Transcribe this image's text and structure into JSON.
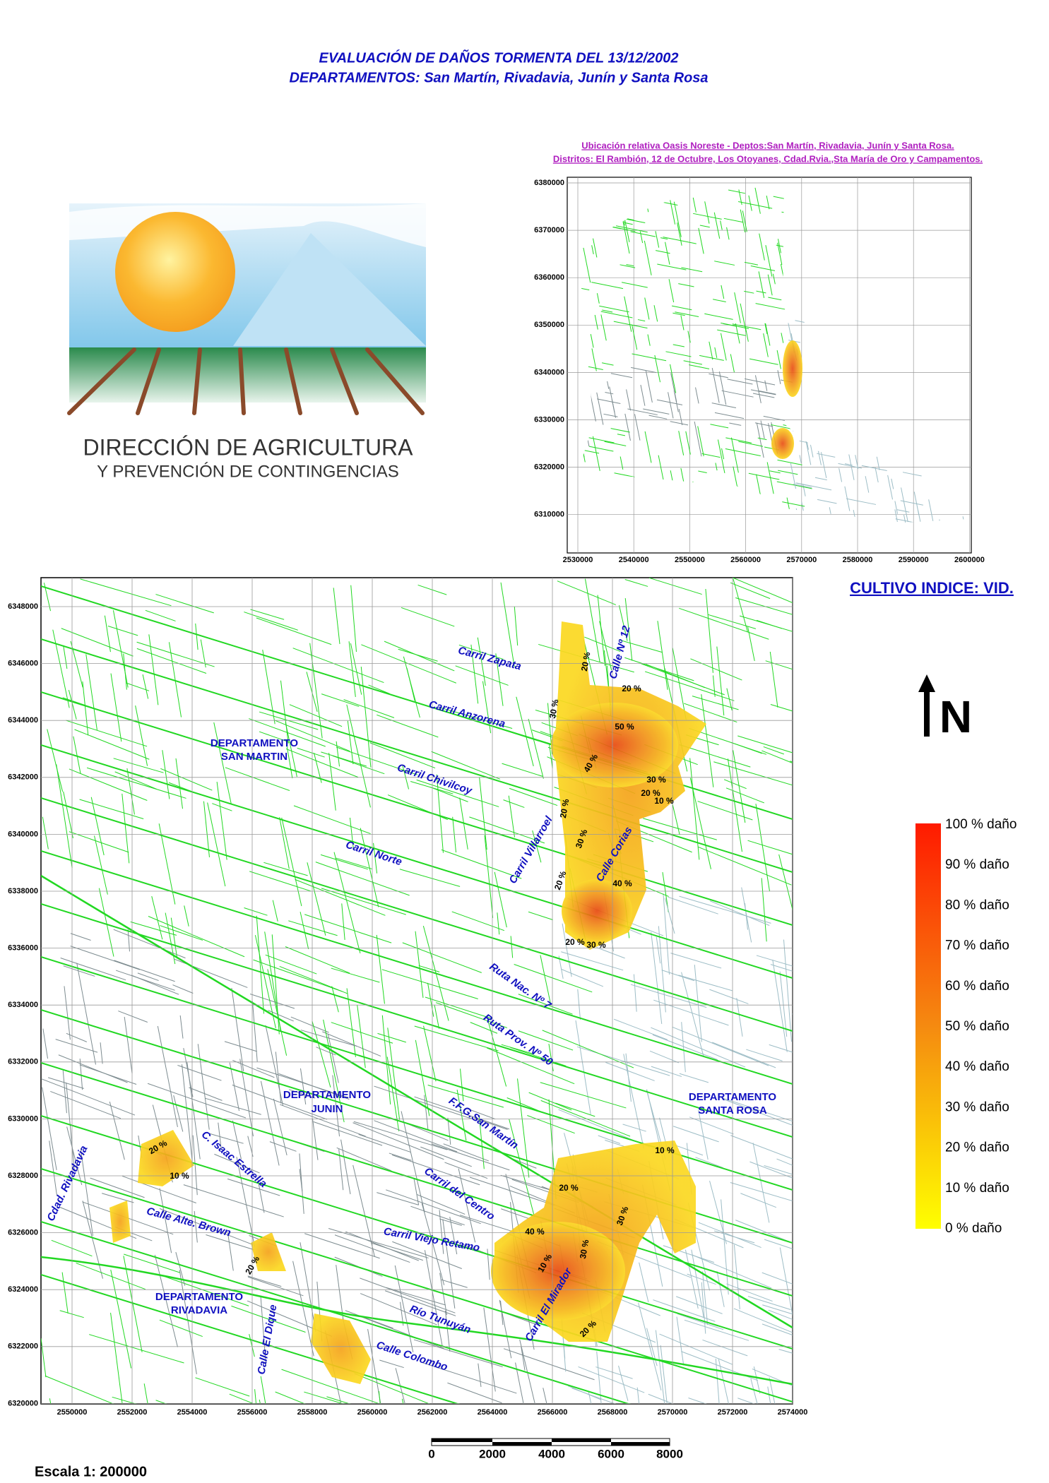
{
  "header": {
    "title": [
      "EVALUACIÓN DE DAÑOS TORMENTA DEL 13/12/2002",
      "DEPARTAMENTOS: San Martín, Rivadavia, Junín y Santa Rosa"
    ]
  },
  "logo": {
    "lines": [
      "DIRECCIÓN DE AGRICULTURA",
      "Y PREVENCIÓN DE CONTINGENCIAS"
    ]
  },
  "inset": {
    "title": [
      "Ubicación relativa Oasis Noreste - Deptos:San Martín, Rivadavia, Junín y Santa Rosa.",
      "Distritos: El Rambión, 12 de Octubre, Los Otoyanes, Cdad.Rvia.,Sta María de Oro y Campamentos."
    ],
    "yticks": [
      6380000,
      6370000,
      6360000,
      6350000,
      6340000,
      6330000,
      6320000,
      6310000
    ],
    "xticks": [
      2530000,
      2540000,
      2550000,
      2560000,
      2570000,
      2580000,
      2590000,
      2600000
    ]
  },
  "map": {
    "yticks": [
      6348000,
      6346000,
      6344000,
      6342000,
      6340000,
      6338000,
      6336000,
      6334000,
      6332000,
      6330000,
      6328000,
      6326000,
      6324000,
      6322000,
      6320000
    ],
    "xticks": [
      2550000,
      2552000,
      2554000,
      2556000,
      2558000,
      2560000,
      2562000,
      2564000,
      2566000,
      2568000,
      2570000,
      2572000,
      2574000
    ],
    "labels": [
      "Carril Zapata",
      "Calle Nº 12",
      "Carril Anzorena",
      "DEPARTAMENTO",
      "SAN MARTIN",
      "Carril Chivilcoy",
      "Carril Norte",
      "Carril Villarroel",
      "Calle Corias",
      "Ruta Nac. Nº 7",
      "Ruta Prov. Nº 50",
      "DEPARTAMENTO",
      "JUNIN",
      "F.F.G.San Martín",
      "DEPARTAMENTO",
      "SANTA ROSA",
      "C. Isaac Estrella",
      "Cdad. Rivadavia",
      "Carril del Centro",
      "Calle  Alte. Brown",
      "Carril Viejo Retamo",
      "DEPARTAMENTO",
      "RIVADAVIA",
      "Calle El Dique",
      "Carril El Mirador",
      "Río Tunuyán",
      "Calle Colombo"
    ],
    "damage_labels": [
      "20 %",
      "20 %",
      "30 %",
      "50 %",
      "40 %",
      "30 %",
      "20 %",
      "10 %",
      "20 %",
      "30 %",
      "20 %",
      "40 %",
      "20 %",
      "30 %",
      "20 %",
      "10 %",
      "10 %",
      "20 %",
      "40 %",
      "30 %",
      "30 %",
      "10 %",
      "20 %",
      "20 %"
    ]
  },
  "crop": "CULTIVO INDICE:  VID.",
  "north": "N",
  "legend": [
    "100  % daño",
    "90  % daño",
    "80  % daño",
    "70  % daño",
    "60  % daño",
    "50  % daño",
    "40  % daño",
    "30  % daño",
    "20  % daño",
    "10  % daño",
    "0  % daño"
  ],
  "scale": {
    "text": "Escala 1: 200000",
    "bar_labels": [
      0,
      2000,
      4000,
      6000,
      8000
    ]
  }
}
